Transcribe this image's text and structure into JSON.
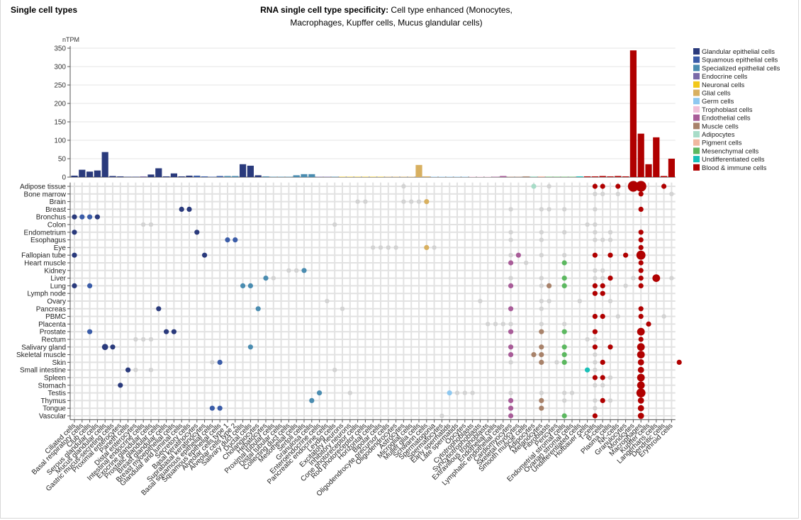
{
  "page": {
    "section_title": "Single cell types",
    "chart_title_bold": "RNA single cell type specificity:",
    "chart_title_rest_line1": "Cell type enhanced (Monocytes,",
    "chart_title_line2": "Macrophages, Kupffer cells, Mucus glandular cells)"
  },
  "chart_data": {
    "type": "bar",
    "ylabel": "nTPM",
    "ylim": [
      0,
      350
    ],
    "yticks": [
      0,
      50,
      100,
      150,
      200,
      250,
      300,
      350
    ],
    "grid": true,
    "legend_position": "right",
    "groups": [
      {
        "name": "Glandular epithelial cells",
        "color": "#2a3a7c"
      },
      {
        "name": "Squamous epithelial cells",
        "color": "#3a5ca8"
      },
      {
        "name": "Specialized epithelial cells",
        "color": "#4a8cb0"
      },
      {
        "name": "Endocrine cells",
        "color": "#7a6aa8"
      },
      {
        "name": "Neuronal cells",
        "color": "#f2c81a"
      },
      {
        "name": "Glial cells",
        "color": "#d8b060"
      },
      {
        "name": "Germ cells",
        "color": "#8ec8f0"
      },
      {
        "name": "Trophoblast cells",
        "color": "#f0c0d8"
      },
      {
        "name": "Endothelial cells",
        "color": "#a85c98"
      },
      {
        "name": "Muscle cells",
        "color": "#a8826a"
      },
      {
        "name": "Adipocytes",
        "color": "#a8dcc8"
      },
      {
        "name": "Pigment cells",
        "color": "#f0b8a0"
      },
      {
        "name": "Mesenchymal cells",
        "color": "#5cb860"
      },
      {
        "name": "Undifferentiated cells",
        "color": "#18c0b8"
      },
      {
        "name": "Blood & immune cells",
        "color": "#b00000"
      }
    ],
    "categories": [
      "Ciliated cells",
      "Basal respiratory cells",
      "Club cells",
      "Serous glandular cells",
      "Mucus glandular cells",
      "Gastric mucus-secreting cells",
      "Proximal enterocytes",
      "Paneth cells",
      "Distal enterocytes",
      "Intestinal endocrine cells",
      "Exocrine glandular cells",
      "Prostatic glandular cells",
      "Breast glandular cells",
      "Breast myoepithelial cells",
      "Glandular and luminal cells",
      "Secretory cells",
      "Basal keratinocytes",
      "Suprabasal keratinocytes",
      "Basal squamous epithelial cells",
      "Squamous epithelial cells",
      "Alveolar cells type 1",
      "Alveolar cells type 2",
      "Salivary duct cells",
      "Ductal cells",
      "Cholangiocytes",
      "Hepatocytes",
      "Proximal tubular cells",
      "Distal tubular cells",
      "Collecting duct cells",
      "Mesothelial cells",
      "Sertoli cells",
      "Granulosa cells",
      "Enteroendocrine cells",
      "Pancreatic endocrine cells",
      "Leydig cells",
      "Excitatory neurons",
      "Inhibitory neurons",
      "Cone photoreceptor cells",
      "Rod photoreceptor cells",
      "Horizontal cells",
      "Bipolar cells",
      "Oligodendrocyte precursor cells",
      "Oligodendrocytes",
      "Astrocytes",
      "Microglial cells",
      "Muller glia cells",
      "Schwann cells",
      "Spermatogonia",
      "Spermatocytes",
      "Early spermatids",
      "Late spermatids",
      "Oocytes",
      "Cytotrophoblasts",
      "Syncytiotrophoblasts",
      "Extravillous trophoblasts",
      "Endothelial cells",
      "Lymphatic endothelial cells",
      "Cardiomyocytes",
      "Skeletal myocytes",
      "Smooth muscle cells",
      "Adipocytes",
      "Melanocytes",
      "Fibroblasts",
      "Pericytes",
      "Endometrial stromal cells",
      "Ovarian stromal cells",
      "Undifferentiated cells",
      "Hofbauer cells",
      "T-cells",
      "B-cells",
      "Plasma cells",
      "NK-cells",
      "Granulocytes",
      "Monocytes",
      "Macrophages",
      "Kupffer cells",
      "Langerhans cells",
      "Dendritic cells",
      "Erythroid cells"
    ],
    "category_groups": [
      0,
      0,
      0,
      0,
      0,
      0,
      0,
      0,
      0,
      3,
      0,
      0,
      0,
      0,
      0,
      0,
      1,
      1,
      1,
      1,
      2,
      2,
      0,
      0,
      0,
      2,
      2,
      2,
      2,
      2,
      2,
      2,
      3,
      3,
      2,
      4,
      4,
      4,
      4,
      4,
      4,
      5,
      5,
      5,
      5,
      5,
      5,
      6,
      6,
      6,
      6,
      6,
      7,
      7,
      7,
      8,
      8,
      9,
      9,
      9,
      10,
      11,
      12,
      12,
      12,
      12,
      13,
      14,
      14,
      14,
      14,
      14,
      14,
      14,
      14,
      14,
      14,
      14,
      14
    ],
    "values": [
      4,
      20,
      15,
      18,
      68,
      3,
      2,
      1,
      1,
      2,
      7,
      24,
      2,
      10,
      2,
      4,
      4,
      2,
      1,
      3,
      3,
      3,
      35,
      31,
      5,
      2,
      1,
      1,
      1,
      5,
      8,
      8,
      1,
      1,
      1,
      1,
      1,
      1,
      1,
      1,
      1,
      1,
      1,
      1,
      1,
      33,
      2,
      1,
      1,
      1,
      1,
      1,
      1,
      1,
      1,
      1,
      3,
      1,
      1,
      2,
      2,
      2,
      1,
      1,
      1,
      1,
      2,
      2,
      2,
      3,
      2,
      3,
      2,
      344,
      118,
      35,
      108,
      3,
      50
    ],
    "tissues": [
      "Adipose tissue",
      "Bone marrow",
      "Brain",
      "Breast",
      "Bronchus",
      "Colon",
      "Endometrium",
      "Esophagus",
      "Eye",
      "Fallopian tube",
      "Heart muscle",
      "Kidney",
      "Liver",
      "Lung",
      "Lymph node",
      "Ovary",
      "Pancreas",
      "PBMC",
      "Placenta",
      "Prostate",
      "Rectum",
      "Salivary gland",
      "Skeletal muscle",
      "Skin",
      "Small intestine",
      "Spleen",
      "Stomach",
      "Testis",
      "Thymus",
      "Tongue",
      "Vascular"
    ],
    "dots": [
      [
        0,
        43,
        0,
        1
      ],
      [
        0,
        60,
        10,
        2
      ],
      [
        0,
        62,
        0,
        1
      ],
      [
        0,
        68,
        14,
        2
      ],
      [
        0,
        69,
        14,
        2
      ],
      [
        0,
        71,
        14,
        2
      ],
      [
        0,
        73,
        14,
        6
      ],
      [
        0,
        74,
        14,
        6
      ],
      [
        0,
        77,
        14,
        2
      ],
      [
        1,
        68,
        0,
        1
      ],
      [
        1,
        69,
        0,
        1
      ],
      [
        1,
        71,
        0,
        1
      ],
      [
        1,
        74,
        14,
        2
      ],
      [
        1,
        78,
        0,
        1
      ],
      [
        2,
        37,
        0,
        1
      ],
      [
        2,
        38,
        0,
        1
      ],
      [
        2,
        43,
        0,
        1
      ],
      [
        2,
        44,
        0,
        1
      ],
      [
        2,
        45,
        0,
        1
      ],
      [
        2,
        46,
        5,
        2
      ],
      [
        3,
        14,
        0,
        2
      ],
      [
        3,
        15,
        0,
        2
      ],
      [
        3,
        57,
        0,
        1
      ],
      [
        3,
        61,
        0,
        1
      ],
      [
        3,
        62,
        0,
        1
      ],
      [
        3,
        64,
        0,
        1
      ],
      [
        3,
        68,
        0,
        1
      ],
      [
        3,
        74,
        14,
        2
      ],
      [
        4,
        0,
        0,
        2
      ],
      [
        4,
        1,
        1,
        2
      ],
      [
        4,
        2,
        1,
        2
      ],
      [
        4,
        3,
        0,
        2
      ],
      [
        5,
        9,
        0,
        1
      ],
      [
        5,
        10,
        0,
        1
      ],
      [
        5,
        34,
        0,
        1
      ],
      [
        5,
        67,
        0,
        1
      ],
      [
        5,
        68,
        0,
        1
      ],
      [
        6,
        0,
        0,
        2
      ],
      [
        6,
        16,
        0,
        2
      ],
      [
        6,
        57,
        0,
        1
      ],
      [
        6,
        61,
        0,
        1
      ],
      [
        6,
        64,
        0,
        1
      ],
      [
        6,
        68,
        0,
        1
      ],
      [
        6,
        70,
        0,
        1
      ],
      [
        6,
        74,
        14,
        2
      ],
      [
        7,
        20,
        1,
        2
      ],
      [
        7,
        21,
        1,
        2
      ],
      [
        7,
        57,
        0,
        1
      ],
      [
        7,
        61,
        0,
        1
      ],
      [
        7,
        68,
        0,
        1
      ],
      [
        7,
        69,
        0,
        1
      ],
      [
        7,
        70,
        0,
        1
      ],
      [
        7,
        74,
        14,
        2
      ],
      [
        8,
        39,
        0,
        1
      ],
      [
        8,
        40,
        0,
        1
      ],
      [
        8,
        41,
        0,
        1
      ],
      [
        8,
        42,
        0,
        1
      ],
      [
        8,
        46,
        5,
        2
      ],
      [
        8,
        47,
        0,
        1
      ],
      [
        8,
        74,
        14,
        2
      ],
      [
        9,
        0,
        0,
        2
      ],
      [
        9,
        17,
        0,
        2
      ],
      [
        9,
        57,
        0,
        1
      ],
      [
        9,
        58,
        8,
        2
      ],
      [
        9,
        61,
        0,
        1
      ],
      [
        9,
        64,
        0,
        1
      ],
      [
        9,
        68,
        14,
        2
      ],
      [
        9,
        70,
        14,
        2
      ],
      [
        9,
        72,
        14,
        2
      ],
      [
        9,
        74,
        14,
        5
      ],
      [
        10,
        57,
        8,
        2
      ],
      [
        10,
        59,
        0,
        1
      ],
      [
        10,
        64,
        12,
        2
      ],
      [
        10,
        74,
        14,
        2
      ],
      [
        11,
        28,
        0,
        1
      ],
      [
        11,
        29,
        0,
        1
      ],
      [
        11,
        30,
        2,
        2
      ],
      [
        11,
        68,
        0,
        1
      ],
      [
        11,
        69,
        0,
        1
      ],
      [
        11,
        74,
        14,
        2
      ],
      [
        12,
        25,
        2,
        2
      ],
      [
        12,
        26,
        0,
        1
      ],
      [
        12,
        57,
        0,
        1
      ],
      [
        12,
        61,
        0,
        1
      ],
      [
        12,
        64,
        12,
        2
      ],
      [
        12,
        68,
        0,
        1
      ],
      [
        12,
        69,
        0,
        1
      ],
      [
        12,
        70,
        14,
        2
      ],
      [
        12,
        73,
        0,
        1
      ],
      [
        12,
        74,
        14,
        2
      ],
      [
        12,
        76,
        14,
        4
      ],
      [
        12,
        78,
        0,
        1
      ],
      [
        13,
        0,
        0,
        2
      ],
      [
        13,
        2,
        1,
        2
      ],
      [
        13,
        22,
        2,
        2
      ],
      [
        13,
        23,
        2,
        2
      ],
      [
        13,
        57,
        8,
        2
      ],
      [
        13,
        61,
        0,
        1
      ],
      [
        13,
        62,
        9,
        2
      ],
      [
        13,
        64,
        12,
        2
      ],
      [
        13,
        68,
        14,
        2
      ],
      [
        13,
        69,
        14,
        2
      ],
      [
        13,
        72,
        0,
        1
      ],
      [
        13,
        74,
        14,
        2
      ],
      [
        14,
        68,
        14,
        2
      ],
      [
        14,
        69,
        14,
        2
      ],
      [
        15,
        33,
        0,
        1
      ],
      [
        15,
        53,
        0,
        1
      ],
      [
        15,
        61,
        0,
        1
      ],
      [
        15,
        62,
        0,
        1
      ],
      [
        15,
        66,
        0,
        1
      ],
      [
        15,
        70,
        0,
        1
      ],
      [
        16,
        11,
        0,
        2
      ],
      [
        16,
        24,
        2,
        2
      ],
      [
        16,
        35,
        0,
        1
      ],
      [
        16,
        57,
        8,
        2
      ],
      [
        16,
        61,
        0,
        1
      ],
      [
        16,
        74,
        14,
        2
      ],
      [
        17,
        68,
        14,
        2
      ],
      [
        17,
        69,
        14,
        2
      ],
      [
        17,
        71,
        0,
        1
      ],
      [
        17,
        74,
        14,
        2
      ],
      [
        17,
        77,
        0,
        1
      ],
      [
        18,
        54,
        0,
        1
      ],
      [
        18,
        55,
        0,
        1
      ],
      [
        18,
        56,
        0,
        1
      ],
      [
        18,
        57,
        0,
        1
      ],
      [
        18,
        61,
        0,
        1
      ],
      [
        18,
        64,
        0,
        1
      ],
      [
        18,
        75,
        14,
        2
      ],
      [
        19,
        2,
        1,
        2
      ],
      [
        19,
        12,
        0,
        2
      ],
      [
        19,
        13,
        0,
        2
      ],
      [
        19,
        57,
        8,
        2
      ],
      [
        19,
        61,
        9,
        2
      ],
      [
        19,
        64,
        12,
        2
      ],
      [
        19,
        68,
        14,
        2
      ],
      [
        19,
        74,
        14,
        4
      ],
      [
        20,
        8,
        0,
        1
      ],
      [
        20,
        9,
        0,
        1
      ],
      [
        20,
        10,
        0,
        1
      ],
      [
        20,
        67,
        0,
        1
      ],
      [
        20,
        68,
        0,
        1
      ],
      [
        20,
        74,
        14,
        2
      ],
      [
        21,
        4,
        0,
        3
      ],
      [
        21,
        5,
        0,
        2
      ],
      [
        21,
        23,
        2,
        2
      ],
      [
        21,
        57,
        8,
        2
      ],
      [
        21,
        61,
        9,
        2
      ],
      [
        21,
        64,
        12,
        2
      ],
      [
        21,
        68,
        14,
        2
      ],
      [
        21,
        70,
        14,
        2
      ],
      [
        21,
        74,
        14,
        4
      ],
      [
        22,
        57,
        8,
        2
      ],
      [
        22,
        60,
        9,
        2
      ],
      [
        22,
        61,
        9,
        2
      ],
      [
        22,
        64,
        12,
        2
      ],
      [
        22,
        68,
        0,
        1
      ],
      [
        22,
        74,
        14,
        4
      ],
      [
        23,
        18,
        0,
        1
      ],
      [
        23,
        19,
        1,
        2
      ],
      [
        23,
        57,
        0,
        1
      ],
      [
        23,
        61,
        9,
        2
      ],
      [
        23,
        63,
        0,
        1
      ],
      [
        23,
        64,
        12,
        2
      ],
      [
        23,
        68,
        0,
        1
      ],
      [
        23,
        69,
        14,
        2
      ],
      [
        23,
        74,
        14,
        3
      ],
      [
        23,
        79,
        14,
        2
      ],
      [
        24,
        7,
        0,
        2
      ],
      [
        24,
        8,
        0,
        1
      ],
      [
        24,
        10,
        0,
        1
      ],
      [
        24,
        34,
        0,
        1
      ],
      [
        24,
        67,
        13,
        2
      ],
      [
        24,
        68,
        0,
        1
      ],
      [
        24,
        74,
        14,
        3
      ],
      [
        25,
        68,
        14,
        2
      ],
      [
        25,
        69,
        14,
        2
      ],
      [
        25,
        70,
        0,
        1
      ],
      [
        25,
        74,
        14,
        4
      ],
      [
        26,
        6,
        0,
        2
      ],
      [
        26,
        68,
        0,
        1
      ],
      [
        26,
        69,
        0,
        1
      ],
      [
        26,
        74,
        14,
        4
      ],
      [
        27,
        32,
        2,
        2
      ],
      [
        27,
        36,
        0,
        1
      ],
      [
        27,
        49,
        6,
        2
      ],
      [
        27,
        50,
        0,
        1
      ],
      [
        27,
        51,
        0,
        1
      ],
      [
        27,
        52,
        0,
        1
      ],
      [
        27,
        57,
        0,
        1
      ],
      [
        27,
        61,
        0,
        1
      ],
      [
        27,
        64,
        0,
        1
      ],
      [
        27,
        65,
        0,
        1
      ],
      [
        27,
        74,
        14,
        5
      ],
      [
        28,
        31,
        2,
        2
      ],
      [
        28,
        57,
        8,
        2
      ],
      [
        28,
        61,
        9,
        2
      ],
      [
        28,
        64,
        0,
        1
      ],
      [
        28,
        68,
        0,
        1
      ],
      [
        28,
        69,
        14,
        2
      ],
      [
        28,
        70,
        0,
        1
      ],
      [
        28,
        74,
        14,
        3
      ],
      [
        29,
        18,
        1,
        2
      ],
      [
        29,
        19,
        1,
        2
      ],
      [
        29,
        57,
        8,
        2
      ],
      [
        29,
        61,
        9,
        2
      ],
      [
        29,
        68,
        0,
        1
      ],
      [
        29,
        74,
        14,
        3
      ],
      [
        30,
        48,
        0,
        1
      ],
      [
        30,
        57,
        8,
        2
      ],
      [
        30,
        64,
        12,
        2
      ],
      [
        30,
        68,
        14,
        2
      ],
      [
        30,
        74,
        14,
        3
      ]
    ]
  }
}
